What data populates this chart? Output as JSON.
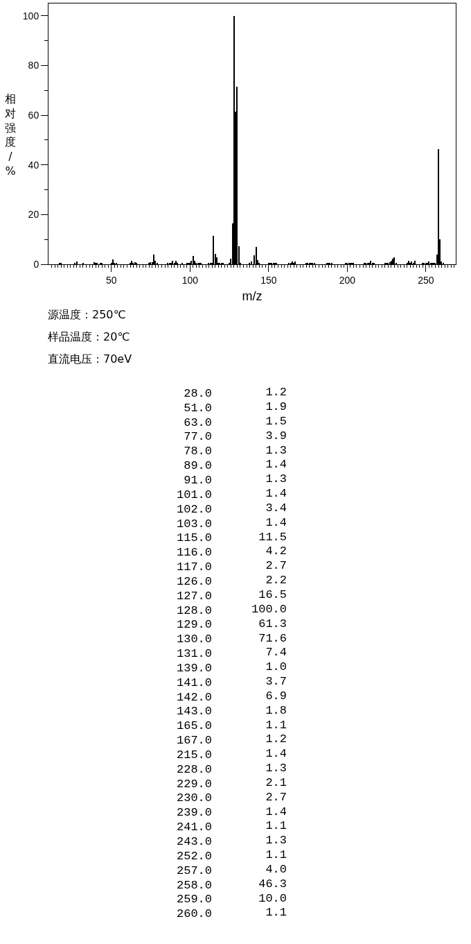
{
  "chart_data": [
    {
      "type": "bar",
      "xlabel": "m/z",
      "ylabel": "相对强度/%",
      "color": "#000000",
      "annotations": [
        "源温度：250℃",
        "样品温度：20℃",
        "直流电压：70eV"
      ],
      "xlim": [
        10,
        269
      ],
      "ylim": [
        0,
        105
      ],
      "xticks": [
        {
          "value": 12,
          "label": null
        },
        {
          "value": 14,
          "label": null
        },
        {
          "value": 16,
          "label": null
        },
        {
          "value": 18,
          "label": null
        },
        {
          "value": 20,
          "label": null
        },
        {
          "value": 22,
          "label": null
        },
        {
          "value": 24,
          "label": null
        },
        {
          "value": 26,
          "label": null
        },
        {
          "value": 28,
          "label": null
        },
        {
          "value": 30,
          "label": null
        },
        {
          "value": 32,
          "label": null
        },
        {
          "value": 34,
          "label": null
        },
        {
          "value": 36,
          "label": null
        },
        {
          "value": 38,
          "label": null
        },
        {
          "value": 40,
          "label": null
        },
        {
          "value": 42,
          "label": null
        },
        {
          "value": 44,
          "label": null
        },
        {
          "value": 46,
          "label": null
        },
        {
          "value": 48,
          "label": null
        },
        50,
        {
          "value": 52,
          "label": null
        },
        {
          "value": 54,
          "label": null
        },
        {
          "value": 56,
          "label": null
        },
        {
          "value": 58,
          "label": null
        },
        {
          "value": 60,
          "label": null
        },
        {
          "value": 62,
          "label": null
        },
        {
          "value": 64,
          "label": null
        },
        {
          "value": 66,
          "label": null
        },
        {
          "value": 68,
          "label": null
        },
        {
          "value": 70,
          "label": null
        },
        {
          "value": 72,
          "label": null
        },
        {
          "value": 74,
          "label": null
        },
        {
          "value": 76,
          "label": null
        },
        {
          "value": 78,
          "label": null
        },
        {
          "value": 80,
          "label": null
        },
        {
          "value": 82,
          "label": null
        },
        {
          "value": 84,
          "label": null
        },
        {
          "value": 86,
          "label": null
        },
        {
          "value": 88,
          "label": null
        },
        {
          "value": 90,
          "label": null
        },
        {
          "value": 92,
          "label": null
        },
        {
          "value": 94,
          "label": null
        },
        {
          "value": 96,
          "label": null
        },
        {
          "value": 98,
          "label": null
        },
        100,
        {
          "value": 102,
          "label": null
        },
        {
          "value": 104,
          "label": null
        },
        {
          "value": 106,
          "label": null
        },
        {
          "value": 108,
          "label": null
        },
        {
          "value": 110,
          "label": null
        },
        {
          "value": 112,
          "label": null
        },
        {
          "value": 114,
          "label": null
        },
        {
          "value": 116,
          "label": null
        },
        {
          "value": 118,
          "label": null
        },
        {
          "value": 120,
          "label": null
        },
        {
          "value": 122,
          "label": null
        },
        {
          "value": 124,
          "label": null
        },
        {
          "value": 126,
          "label": null
        },
        {
          "value": 128,
          "label": null
        },
        {
          "value": 130,
          "label": null
        },
        {
          "value": 132,
          "label": null
        },
        {
          "value": 134,
          "label": null
        },
        {
          "value": 136,
          "label": null
        },
        {
          "value": 138,
          "label": null
        },
        {
          "value": 140,
          "label": null
        },
        {
          "value": 142,
          "label": null
        },
        {
          "value": 144,
          "label": null
        },
        {
          "value": 146,
          "label": null
        },
        {
          "value": 148,
          "label": null
        },
        150,
        {
          "value": 152,
          "label": null
        },
        {
          "value": 154,
          "label": null
        },
        {
          "value": 156,
          "label": null
        },
        {
          "value": 158,
          "label": null
        },
        {
          "value": 160,
          "label": null
        },
        {
          "value": 162,
          "label": null
        },
        {
          "value": 164,
          "label": null
        },
        {
          "value": 166,
          "label": null
        },
        {
          "value": 168,
          "label": null
        },
        {
          "value": 170,
          "label": null
        },
        {
          "value": 172,
          "label": null
        },
        {
          "value": 174,
          "label": null
        },
        {
          "value": 176,
          "label": null
        },
        {
          "value": 178,
          "label": null
        },
        {
          "value": 180,
          "label": null
        },
        {
          "value": 182,
          "label": null
        },
        {
          "value": 184,
          "label": null
        },
        {
          "value": 186,
          "label": null
        },
        {
          "value": 188,
          "label": null
        },
        {
          "value": 190,
          "label": null
        },
        {
          "value": 192,
          "label": null
        },
        {
          "value": 194,
          "label": null
        },
        {
          "value": 196,
          "label": null
        },
        {
          "value": 198,
          "label": null
        },
        200,
        {
          "value": 202,
          "label": null
        },
        {
          "value": 204,
          "label": null
        },
        {
          "value": 206,
          "label": null
        },
        {
          "value": 208,
          "label": null
        },
        {
          "value": 210,
          "label": null
        },
        {
          "value": 212,
          "label": null
        },
        {
          "value": 214,
          "label": null
        },
        {
          "value": 216,
          "label": null
        },
        {
          "value": 218,
          "label": null
        },
        {
          "value": 220,
          "label": null
        },
        {
          "value": 222,
          "label": null
        },
        {
          "value": 224,
          "label": null
        },
        {
          "value": 226,
          "label": null
        },
        {
          "value": 228,
          "label": null
        },
        {
          "value": 230,
          "label": null
        },
        {
          "value": 232,
          "label": null
        },
        {
          "value": 234,
          "label": null
        },
        {
          "value": 236,
          "label": null
        },
        {
          "value": 238,
          "label": null
        },
        {
          "value": 240,
          "label": null
        },
        {
          "value": 242,
          "label": null
        },
        {
          "value": 244,
          "label": null
        },
        {
          "value": 246,
          "label": null
        },
        {
          "value": 248,
          "label": null
        },
        250,
        {
          "value": 252,
          "label": null
        },
        {
          "value": 254,
          "label": null
        },
        {
          "value": 256,
          "label": null
        },
        {
          "value": 258,
          "label": null
        },
        {
          "value": 260,
          "label": null
        },
        {
          "value": 262,
          "label": null
        },
        {
          "value": 264,
          "label": null
        },
        {
          "value": 266,
          "label": null
        },
        {
          "value": 268,
          "label": null
        }
      ],
      "yticks": [
        0,
        {
          "value": 10,
          "label": null
        },
        20,
        {
          "value": 30,
          "label": null
        },
        40,
        {
          "value": 50,
          "label": null
        },
        60,
        {
          "value": 70,
          "label": null
        },
        80,
        {
          "value": 90,
          "label": null
        },
        100
      ],
      "x": [
        17,
        18,
        27,
        28,
        32,
        39,
        40,
        41,
        43,
        44,
        50,
        51,
        52,
        53,
        62,
        63,
        64,
        65,
        66,
        74,
        75,
        76,
        77,
        78,
        79,
        86,
        87,
        88,
        89,
        90,
        91,
        92,
        95,
        98,
        99,
        100,
        101,
        102,
        103,
        104,
        105,
        106,
        107,
        112,
        113,
        114,
        115,
        116,
        117,
        118,
        119,
        120,
        121,
        125,
        126,
        127,
        128,
        129,
        130,
        131,
        132,
        138,
        139,
        141,
        142,
        143,
        144,
        150,
        151,
        152,
        153,
        154,
        155,
        163,
        164,
        165,
        166,
        167,
        174,
        175,
        176,
        177,
        178,
        179,
        187,
        188,
        189,
        190,
        199,
        200,
        201,
        202,
        203,
        204,
        211,
        212,
        213,
        214,
        215,
        216,
        217,
        224,
        225,
        226,
        227,
        228,
        229,
        230,
        231,
        238,
        239,
        240,
        241,
        242,
        243,
        248,
        249,
        250,
        251,
        252,
        253,
        254,
        255,
        256,
        257,
        258,
        259,
        260,
        261
      ],
      "values": [
        0.3,
        0.5,
        0.3,
        1.2,
        0.4,
        0.7,
        0.4,
        0.3,
        0.3,
        0.3,
        0.4,
        1.9,
        0.6,
        0.3,
        0.4,
        1.5,
        0.5,
        0.8,
        0.3,
        0.5,
        0.8,
        0.8,
        3.9,
        1.3,
        0.4,
        0.3,
        0.5,
        0.3,
        1.4,
        0.4,
        1.3,
        0.4,
        0.3,
        0.3,
        0.5,
        0.3,
        1.4,
        3.4,
        1.4,
        0.3,
        0.3,
        0.3,
        0.3,
        0.4,
        0.6,
        0.6,
        11.5,
        4.2,
        2.7,
        0.3,
        0.4,
        0.3,
        0.3,
        0.3,
        2.2,
        16.5,
        100.0,
        61.3,
        71.6,
        7.4,
        0.5,
        0.5,
        1.0,
        3.7,
        6.9,
        1.8,
        0.3,
        0.3,
        0.3,
        0.6,
        0.4,
        0.3,
        0.3,
        0.3,
        0.3,
        1.1,
        0.5,
        1.2,
        0.3,
        0.3,
        0.3,
        0.3,
        0.3,
        0.3,
        0.3,
        0.3,
        0.3,
        0.3,
        0.3,
        0.4,
        0.4,
        0.5,
        0.3,
        0.3,
        0.3,
        0.3,
        0.3,
        0.3,
        1.4,
        0.5,
        0.3,
        0.3,
        0.3,
        0.5,
        0.9,
        1.3,
        2.1,
        2.7,
        0.5,
        0.3,
        1.4,
        0.5,
        1.1,
        0.5,
        1.3,
        0.3,
        0.4,
        0.5,
        0.3,
        1.1,
        0.6,
        0.5,
        0.3,
        0.5,
        4.0,
        46.3,
        10.0,
        1.1,
        0.3
      ]
    },
    {
      "type": "other",
      "categories": [
        "28.0",
        "51.0",
        "63.0",
        "77.0",
        "78.0",
        "89.0",
        "91.0",
        "101.0",
        "102.0",
        "103.0",
        "115.0",
        "116.0",
        "117.0",
        "126.0",
        "127.0",
        "128.0",
        "129.0",
        "130.0",
        "131.0",
        "139.0",
        "141.0",
        "142.0",
        "143.0",
        "165.0",
        "167.0",
        "215.0",
        "228.0",
        "229.0",
        "230.0",
        "239.0",
        "241.0",
        "243.0",
        "252.0",
        "257.0",
        "258.0",
        "259.0",
        "260.0"
      ],
      "values": [
        1.2,
        1.9,
        1.5,
        3.9,
        1.3,
        1.4,
        1.3,
        1.4,
        3.4,
        1.4,
        11.5,
        4.2,
        2.7,
        2.2,
        16.5,
        100.0,
        61.3,
        71.6,
        7.4,
        1.0,
        3.7,
        6.9,
        1.8,
        1.1,
        1.2,
        1.4,
        1.3,
        2.1,
        2.7,
        1.4,
        1.1,
        1.3,
        1.1,
        4.0,
        46.3,
        10.0,
        1.1
      ],
      "value_labels": [
        "1.2",
        "1.9",
        "1.5",
        "3.9",
        "1.3",
        "1.4",
        "1.3",
        "1.4",
        "3.4",
        "1.4",
        "11.5",
        "4.2",
        "2.7",
        "2.2",
        "16.5",
        "100.0",
        "61.3",
        "71.6",
        "7.4",
        "1.0",
        "3.7",
        "6.9",
        "1.8",
        "1.1",
        "1.2",
        "1.4",
        "1.3",
        "2.1",
        "2.7",
        "1.4",
        "1.1",
        "1.3",
        "1.1",
        "4.0",
        "46.3",
        "10.0",
        "1.1"
      ]
    }
  ]
}
